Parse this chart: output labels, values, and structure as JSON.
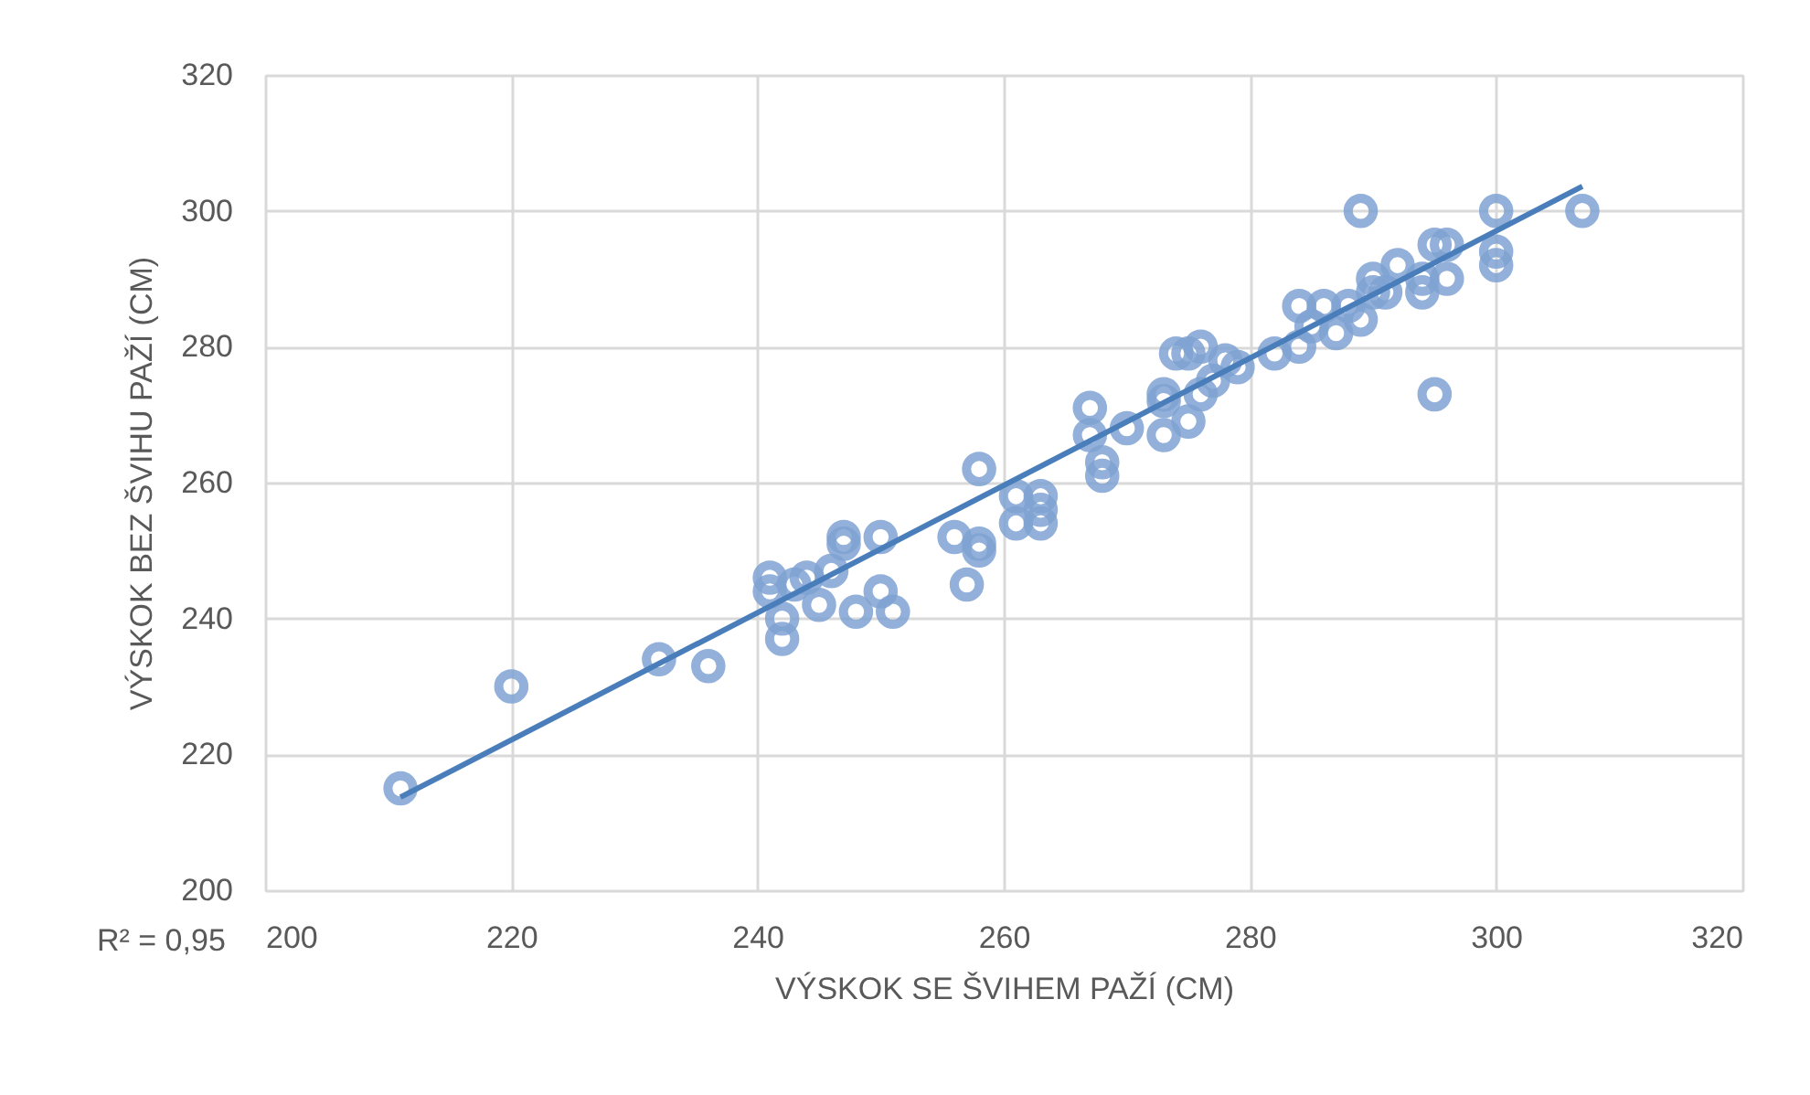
{
  "chart_data": {
    "type": "scatter",
    "xlabel": "VÝSKOK SE ŠVIHEM PAŽÍ (CM)",
    "ylabel": "VÝSKOK BEZ ŠVIHU PAŽÍ (CM)",
    "annotations": [
      "R² = 0,95"
    ],
    "xlim": [
      200,
      320
    ],
    "ylim": [
      200,
      320
    ],
    "xticks": [
      200,
      220,
      240,
      260,
      280,
      300,
      320
    ],
    "yticks": [
      200,
      220,
      240,
      260,
      280,
      300,
      320
    ],
    "grid": true,
    "marker": "circle",
    "series": [
      {
        "color": "#7fa3d3",
        "x": [
          211,
          220,
          232,
          236,
          241,
          241,
          242,
          242,
          243,
          244,
          245,
          246,
          247,
          247,
          248,
          250,
          250,
          251,
          256,
          257,
          258,
          258,
          258,
          261,
          261,
          263,
          263,
          263,
          267,
          267,
          268,
          268,
          270,
          273,
          273,
          273,
          274,
          275,
          275,
          276,
          276,
          277,
          278,
          279,
          282,
          284,
          284,
          285,
          286,
          287,
          288,
          289,
          289,
          290,
          290,
          291,
          292,
          294,
          294,
          295,
          295,
          296,
          296,
          300,
          300,
          300,
          307
        ],
        "values": [
          215,
          230,
          234,
          233,
          246,
          244,
          240,
          237,
          245,
          246,
          242,
          247,
          252,
          251,
          241,
          252,
          244,
          241,
          252,
          245,
          262,
          251,
          250,
          258,
          254,
          258,
          256,
          254,
          271,
          267,
          263,
          261,
          268,
          273,
          272,
          267,
          279,
          279,
          269,
          280,
          273,
          275,
          278,
          277,
          279,
          286,
          280,
          283,
          286,
          282,
          286,
          300,
          284,
          290,
          288,
          288,
          292,
          290,
          288,
          295,
          273,
          295,
          290,
          300,
          294,
          292,
          300
        ]
      },
      {
        "type": "line",
        "color": "#4a7ebb",
        "marker": "none",
        "x": [
          211,
          307
        ],
        "values": [
          213.7,
          303.6
        ]
      }
    ]
  }
}
